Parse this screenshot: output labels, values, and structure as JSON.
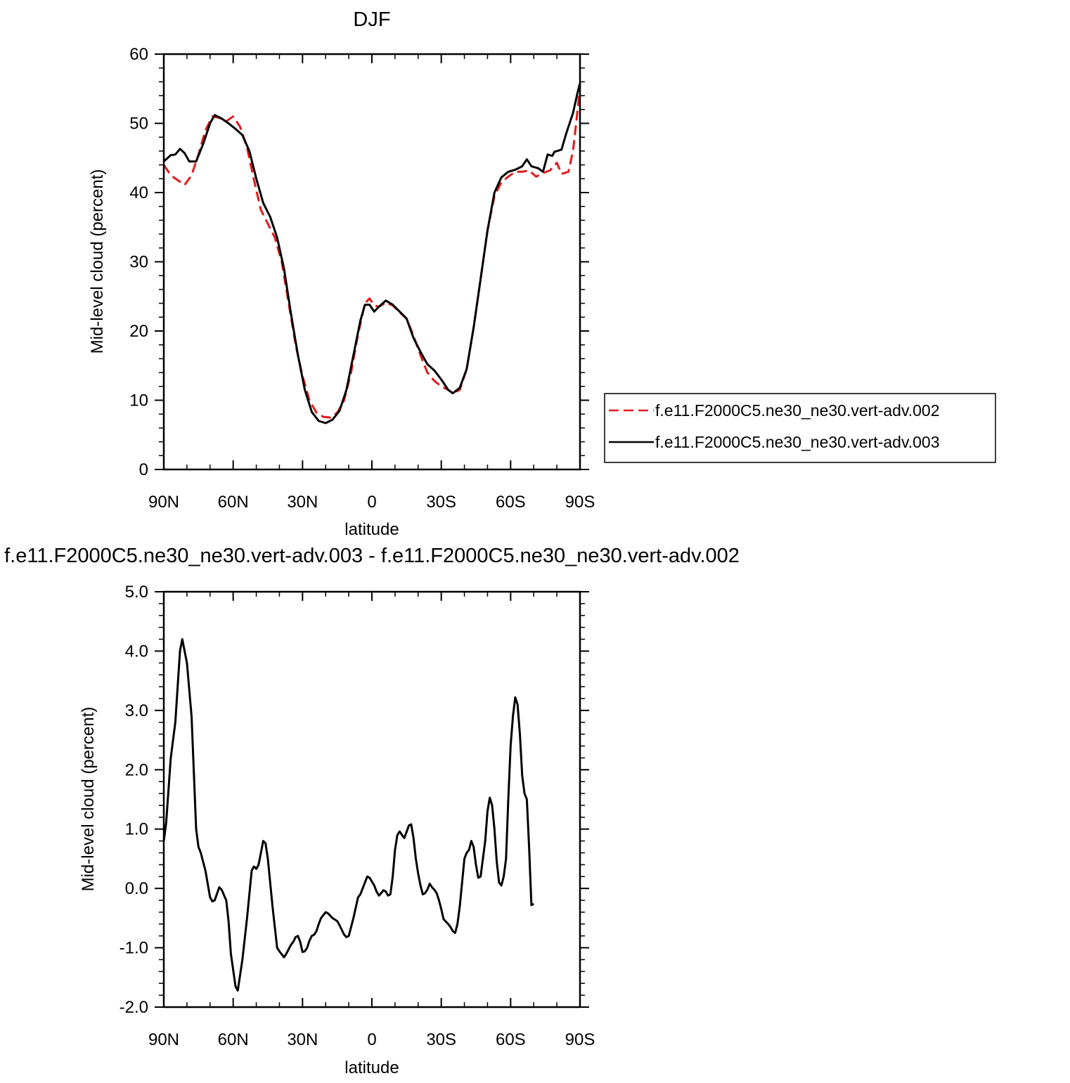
{
  "chart_data": [
    {
      "type": "line",
      "title": "DJF",
      "xlabel": "latitude",
      "ylabel": "Mid-level cloud (percent)",
      "xlim": [
        90,
        -90
      ],
      "ylim": [
        0,
        60
      ],
      "x_ticks": [
        90,
        60,
        30,
        0,
        -30,
        -60,
        -90
      ],
      "x_tick_labels": [
        "90N",
        "60N",
        "30N",
        "0",
        "30S",
        "60S",
        "90S"
      ],
      "y_ticks": [
        0,
        10,
        20,
        30,
        40,
        50,
        60
      ],
      "y_tick_labels": [
        "0",
        "10",
        "20",
        "30",
        "40",
        "50",
        "60"
      ],
      "legend_position": "right",
      "series": [
        {
          "name": "f.e11.F2000C5.ne30_ne30.vert-adv.002",
          "color": "#e31a1c",
          "dash": "dashed",
          "points": [
            [
              90,
              44.0
            ],
            [
              87,
              42.5
            ],
            [
              84,
              41.8
            ],
            [
              81,
              41.1
            ],
            [
              78,
              42.5
            ],
            [
              75,
              45.5
            ],
            [
              72,
              49.0
            ],
            [
              69,
              51.0
            ],
            [
              66,
              50.8
            ],
            [
              63,
              50.3
            ],
            [
              60,
              51.0
            ],
            [
              57,
              49.5
            ],
            [
              54,
              46.5
            ],
            [
              51,
              41.8
            ],
            [
              48,
              37.5
            ],
            [
              45,
              35.5
            ],
            [
              42,
              33.5
            ],
            [
              39,
              30.0
            ],
            [
              36,
              24.0
            ],
            [
              33,
              18.0
            ],
            [
              30,
              13.5
            ],
            [
              27,
              10.0
            ],
            [
              24,
              8.2
            ],
            [
              21,
              7.6
            ],
            [
              18,
              7.5
            ],
            [
              15,
              8.2
            ],
            [
              12,
              10.0
            ],
            [
              9,
              14.0
            ],
            [
              6,
              19.5
            ],
            [
              3,
              24.0
            ],
            [
              1,
              24.7
            ],
            [
              -1,
              23.7
            ],
            [
              -3,
              23.5
            ],
            [
              -6,
              24.1
            ],
            [
              -9,
              23.7
            ],
            [
              -12,
              22.7
            ],
            [
              -15,
              21.8
            ],
            [
              -18,
              19.3
            ],
            [
              -21,
              16.5
            ],
            [
              -24,
              14.0
            ],
            [
              -27,
              12.8
            ],
            [
              -30,
              12.0
            ],
            [
              -33,
              11.5
            ],
            [
              -35,
              11.0
            ],
            [
              -38,
              11.5
            ],
            [
              -41,
              14.5
            ],
            [
              -44,
              20.5
            ],
            [
              -47,
              27.5
            ],
            [
              -50,
              34.5
            ],
            [
              -53,
              39.5
            ],
            [
              -56,
              41.5
            ],
            [
              -59,
              42.3
            ],
            [
              -62,
              43.0
            ],
            [
              -65,
              43.0
            ],
            [
              -68,
              43.2
            ],
            [
              -71,
              42.3
            ],
            [
              -74,
              42.8
            ],
            [
              -77,
              43.2
            ],
            [
              -80,
              44.3
            ],
            [
              -82,
              42.7
            ],
            [
              -85,
              43.0
            ],
            [
              -87,
              46.0
            ],
            [
              -89,
              52.0
            ],
            [
              -90,
              55.5
            ]
          ]
        },
        {
          "name": "f.e11.F2000C5.ne30_ne30.vert-adv.003",
          "color": "#000000",
          "dash": "solid",
          "points": [
            [
              90,
              44.5
            ],
            [
              87,
              45.4
            ],
            [
              85,
              45.5
            ],
            [
              83,
              46.3
            ],
            [
              81,
              45.7
            ],
            [
              79,
              44.5
            ],
            [
              76,
              44.5
            ],
            [
              73,
              47.0
            ],
            [
              70,
              50.0
            ],
            [
              68,
              51.2
            ],
            [
              65,
              50.7
            ],
            [
              62,
              50.0
            ],
            [
              59,
              49.2
            ],
            [
              56,
              48.3
            ],
            [
              53,
              46.0
            ],
            [
              50,
              42.0
            ],
            [
              47,
              38.5
            ],
            [
              44,
              36.5
            ],
            [
              41,
              33.5
            ],
            [
              38,
              29.0
            ],
            [
              35,
              22.5
            ],
            [
              32,
              16.5
            ],
            [
              29,
              11.5
            ],
            [
              26,
              8.3
            ],
            [
              23,
              7.0
            ],
            [
              20,
              6.7
            ],
            [
              17,
              7.2
            ],
            [
              14,
              8.5
            ],
            [
              11,
              11.5
            ],
            [
              8,
              16.5
            ],
            [
              5,
              21.5
            ],
            [
              3,
              23.8
            ],
            [
              1,
              23.8
            ],
            [
              -1,
              22.8
            ],
            [
              -3,
              23.5
            ],
            [
              -6,
              24.4
            ],
            [
              -9,
              23.8
            ],
            [
              -12,
              22.8
            ],
            [
              -15,
              21.8
            ],
            [
              -18,
              19.0
            ],
            [
              -21,
              17.0
            ],
            [
              -24,
              15.2
            ],
            [
              -27,
              14.3
            ],
            [
              -30,
              13.0
            ],
            [
              -33,
              11.5
            ],
            [
              -35,
              11.0
            ],
            [
              -38,
              11.8
            ],
            [
              -41,
              14.5
            ],
            [
              -44,
              20.5
            ],
            [
              -47,
              27.5
            ],
            [
              -50,
              34.5
            ],
            [
              -53,
              40.0
            ],
            [
              -56,
              42.2
            ],
            [
              -59,
              43.0
            ],
            [
              -62,
              43.3
            ],
            [
              -65,
              43.8
            ],
            [
              -67,
              44.8
            ],
            [
              -69,
              43.8
            ],
            [
              -72,
              43.5
            ],
            [
              -74,
              43.0
            ],
            [
              -76,
              45.5
            ],
            [
              -78,
              45.3
            ],
            [
              -79,
              45.9
            ],
            [
              -82,
              46.2
            ],
            [
              -84,
              48.5
            ],
            [
              -87,
              51.5
            ],
            [
              -89,
              54.5
            ],
            [
              -90,
              55.8
            ]
          ]
        }
      ]
    },
    {
      "type": "line",
      "title": "f.e11.F2000C5.ne30_ne30.vert-adv.003 - f.e11.F2000C5.ne30_ne30.vert-adv.002",
      "xlabel": "latitude",
      "ylabel": "Mid-level cloud (percent)",
      "xlim": [
        90,
        -90
      ],
      "ylim": [
        -2.0,
        5.0
      ],
      "x_ticks": [
        90,
        60,
        30,
        0,
        -30,
        -60,
        -90
      ],
      "x_tick_labels": [
        "90N",
        "60N",
        "30N",
        "0",
        "30S",
        "60S",
        "90S"
      ],
      "y_ticks": [
        -2.0,
        -1.0,
        0.0,
        1.0,
        2.0,
        3.0,
        4.0,
        5.0
      ],
      "y_tick_labels": [
        "-2.0",
        "-1.0",
        "0.0",
        "1.0",
        "2.0",
        "3.0",
        "4.0",
        "5.0"
      ],
      "series": [
        {
          "color": "#000000",
          "dash": "solid",
          "points": [
            [
              90,
              0.8
            ],
            [
              89,
              1.1
            ],
            [
              87,
              2.2
            ],
            [
              85,
              2.8
            ],
            [
              83,
              4.0
            ],
            [
              82,
              4.2
            ],
            [
              80,
              3.8
            ],
            [
              78,
              2.9
            ],
            [
              76,
              1.0
            ],
            [
              75,
              0.7
            ],
            [
              74,
              0.6
            ],
            [
              72,
              0.3
            ],
            [
              70,
              -0.15
            ],
            [
              69,
              -0.22
            ],
            [
              68,
              -0.2
            ],
            [
              66,
              0.02
            ],
            [
              65,
              -0.02
            ],
            [
              63,
              -0.2
            ],
            [
              62,
              -0.55
            ],
            [
              61,
              -1.1
            ],
            [
              59,
              -1.65
            ],
            [
              58,
              -1.72
            ],
            [
              56,
              -1.2
            ],
            [
              54,
              -0.5
            ],
            [
              52,
              0.3
            ],
            [
              51,
              0.37
            ],
            [
              50,
              0.33
            ],
            [
              49,
              0.4
            ],
            [
              47,
              0.8
            ],
            [
              46,
              0.76
            ],
            [
              45,
              0.5
            ],
            [
              43,
              -0.3
            ],
            [
              41,
              -1.0
            ],
            [
              40,
              -1.06
            ],
            [
              38,
              -1.16
            ],
            [
              37,
              -1.1
            ],
            [
              35,
              -0.95
            ],
            [
              34,
              -0.9
            ],
            [
              33,
              -0.82
            ],
            [
              32,
              -0.8
            ],
            [
              31,
              -0.9
            ],
            [
              30,
              -1.07
            ],
            [
              29,
              -1.06
            ],
            [
              28,
              -1.0
            ],
            [
              27,
              -0.88
            ],
            [
              26,
              -0.8
            ],
            [
              25,
              -0.78
            ],
            [
              24,
              -0.72
            ],
            [
              23,
              -0.6
            ],
            [
              22,
              -0.5
            ],
            [
              20,
              -0.4
            ],
            [
              19,
              -0.42
            ],
            [
              17,
              -0.5
            ],
            [
              15,
              -0.55
            ],
            [
              14,
              -0.62
            ],
            [
              12,
              -0.78
            ],
            [
              11,
              -0.82
            ],
            [
              10,
              -0.8
            ],
            [
              8,
              -0.5
            ],
            [
              6,
              -0.15
            ],
            [
              5,
              -0.1
            ],
            [
              3,
              0.1
            ],
            [
              2,
              0.2
            ],
            [
              1,
              0.18
            ],
            [
              -1,
              0.05
            ],
            [
              -2,
              -0.05
            ],
            [
              -3,
              -0.12
            ],
            [
              -4,
              -0.08
            ],
            [
              -5,
              -0.03
            ],
            [
              -6,
              -0.05
            ],
            [
              -7,
              -0.12
            ],
            [
              -8,
              -0.1
            ],
            [
              -9,
              0.2
            ],
            [
              -10,
              0.65
            ],
            [
              -11,
              0.9
            ],
            [
              -12,
              0.96
            ],
            [
              -13,
              0.9
            ],
            [
              -14,
              0.85
            ],
            [
              -15,
              0.95
            ],
            [
              -16,
              1.06
            ],
            [
              -17,
              1.08
            ],
            [
              -18,
              0.85
            ],
            [
              -19,
              0.5
            ],
            [
              -20,
              0.25
            ],
            [
              -21,
              0.05
            ],
            [
              -22,
              -0.1
            ],
            [
              -23,
              -0.08
            ],
            [
              -24,
              -0.02
            ],
            [
              -25,
              0.08
            ],
            [
              -26,
              0.02
            ],
            [
              -27,
              -0.02
            ],
            [
              -28,
              -0.08
            ],
            [
              -29,
              -0.2
            ],
            [
              -30,
              -0.35
            ],
            [
              -31,
              -0.52
            ],
            [
              -32,
              -0.56
            ],
            [
              -33,
              -0.6
            ],
            [
              -34,
              -0.65
            ],
            [
              -35,
              -0.72
            ],
            [
              -36,
              -0.75
            ],
            [
              -37,
              -0.6
            ],
            [
              -38,
              -0.3
            ],
            [
              -39,
              0.1
            ],
            [
              -40,
              0.5
            ],
            [
              -41,
              0.6
            ],
            [
              -42,
              0.65
            ],
            [
              -43,
              0.8
            ],
            [
              -44,
              0.7
            ],
            [
              -45,
              0.4
            ],
            [
              -46,
              0.18
            ],
            [
              -47,
              0.2
            ],
            [
              -48,
              0.5
            ],
            [
              -49,
              0.8
            ],
            [
              -50,
              1.3
            ],
            [
              -51,
              1.53
            ],
            [
              -52,
              1.4
            ],
            [
              -53,
              1.0
            ],
            [
              -54,
              0.45
            ],
            [
              -55,
              0.1
            ],
            [
              -56,
              0.05
            ],
            [
              -57,
              0.2
            ],
            [
              -58,
              0.5
            ],
            [
              -59,
              1.5
            ],
            [
              -60,
              2.4
            ],
            [
              -61,
              2.9
            ],
            [
              -62,
              3.22
            ],
            [
              -63,
              3.1
            ],
            [
              -64,
              2.6
            ],
            [
              -65,
              1.9
            ],
            [
              -66,
              1.6
            ],
            [
              -67,
              1.5
            ],
            [
              -68,
              0.7
            ],
            [
              -69,
              -0.28
            ],
            [
              -70,
              -0.26
            ]
          ]
        }
      ]
    }
  ]
}
